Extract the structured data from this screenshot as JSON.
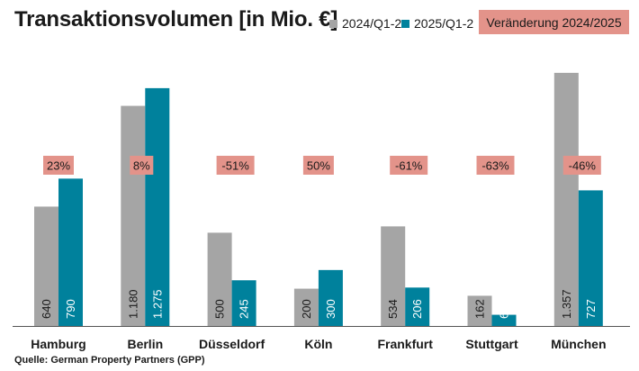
{
  "title": "Transaktionsvolumen [in Mio. €]",
  "source": "Quelle: German Property Partners (GPP)",
  "legend": {
    "series_2024": "2024/Q1-2",
    "series_2025": "2025/Q1-2",
    "change": "Veränderung 2024/2025"
  },
  "colors": {
    "series_2024": "#a5a5a5",
    "series_2025": "#00819c",
    "change_box": "#e3938a"
  },
  "chart_data": {
    "type": "bar",
    "title": "Transaktionsvolumen [in Mio. €]",
    "xlabel": "",
    "ylabel": "",
    "categories": [
      "Hamburg",
      "Berlin",
      "Düsseldorf",
      "Köln",
      "Frankfurt",
      "Stuttgart",
      "München"
    ],
    "series": [
      {
        "name": "2024/Q1-2",
        "values": [
          640,
          1180,
          500,
          200,
          534,
          162,
          1357
        ],
        "labels": [
          "640",
          "1.180",
          "500",
          "200",
          "534",
          "162",
          "1.357"
        ]
      },
      {
        "name": "2025/Q1-2",
        "values": [
          790,
          1275,
          245,
          300,
          206,
          60,
          727
        ],
        "labels": [
          "790",
          "1.275",
          "245",
          "300",
          "206",
          "60",
          "727"
        ]
      }
    ],
    "change_labels": [
      "23%",
      "8%",
      "-51%",
      "50%",
      "-61%",
      "-63%",
      "-46%"
    ],
    "ylim": [
      0,
      1400
    ],
    "grid": false,
    "legend_position": "top-right"
  }
}
